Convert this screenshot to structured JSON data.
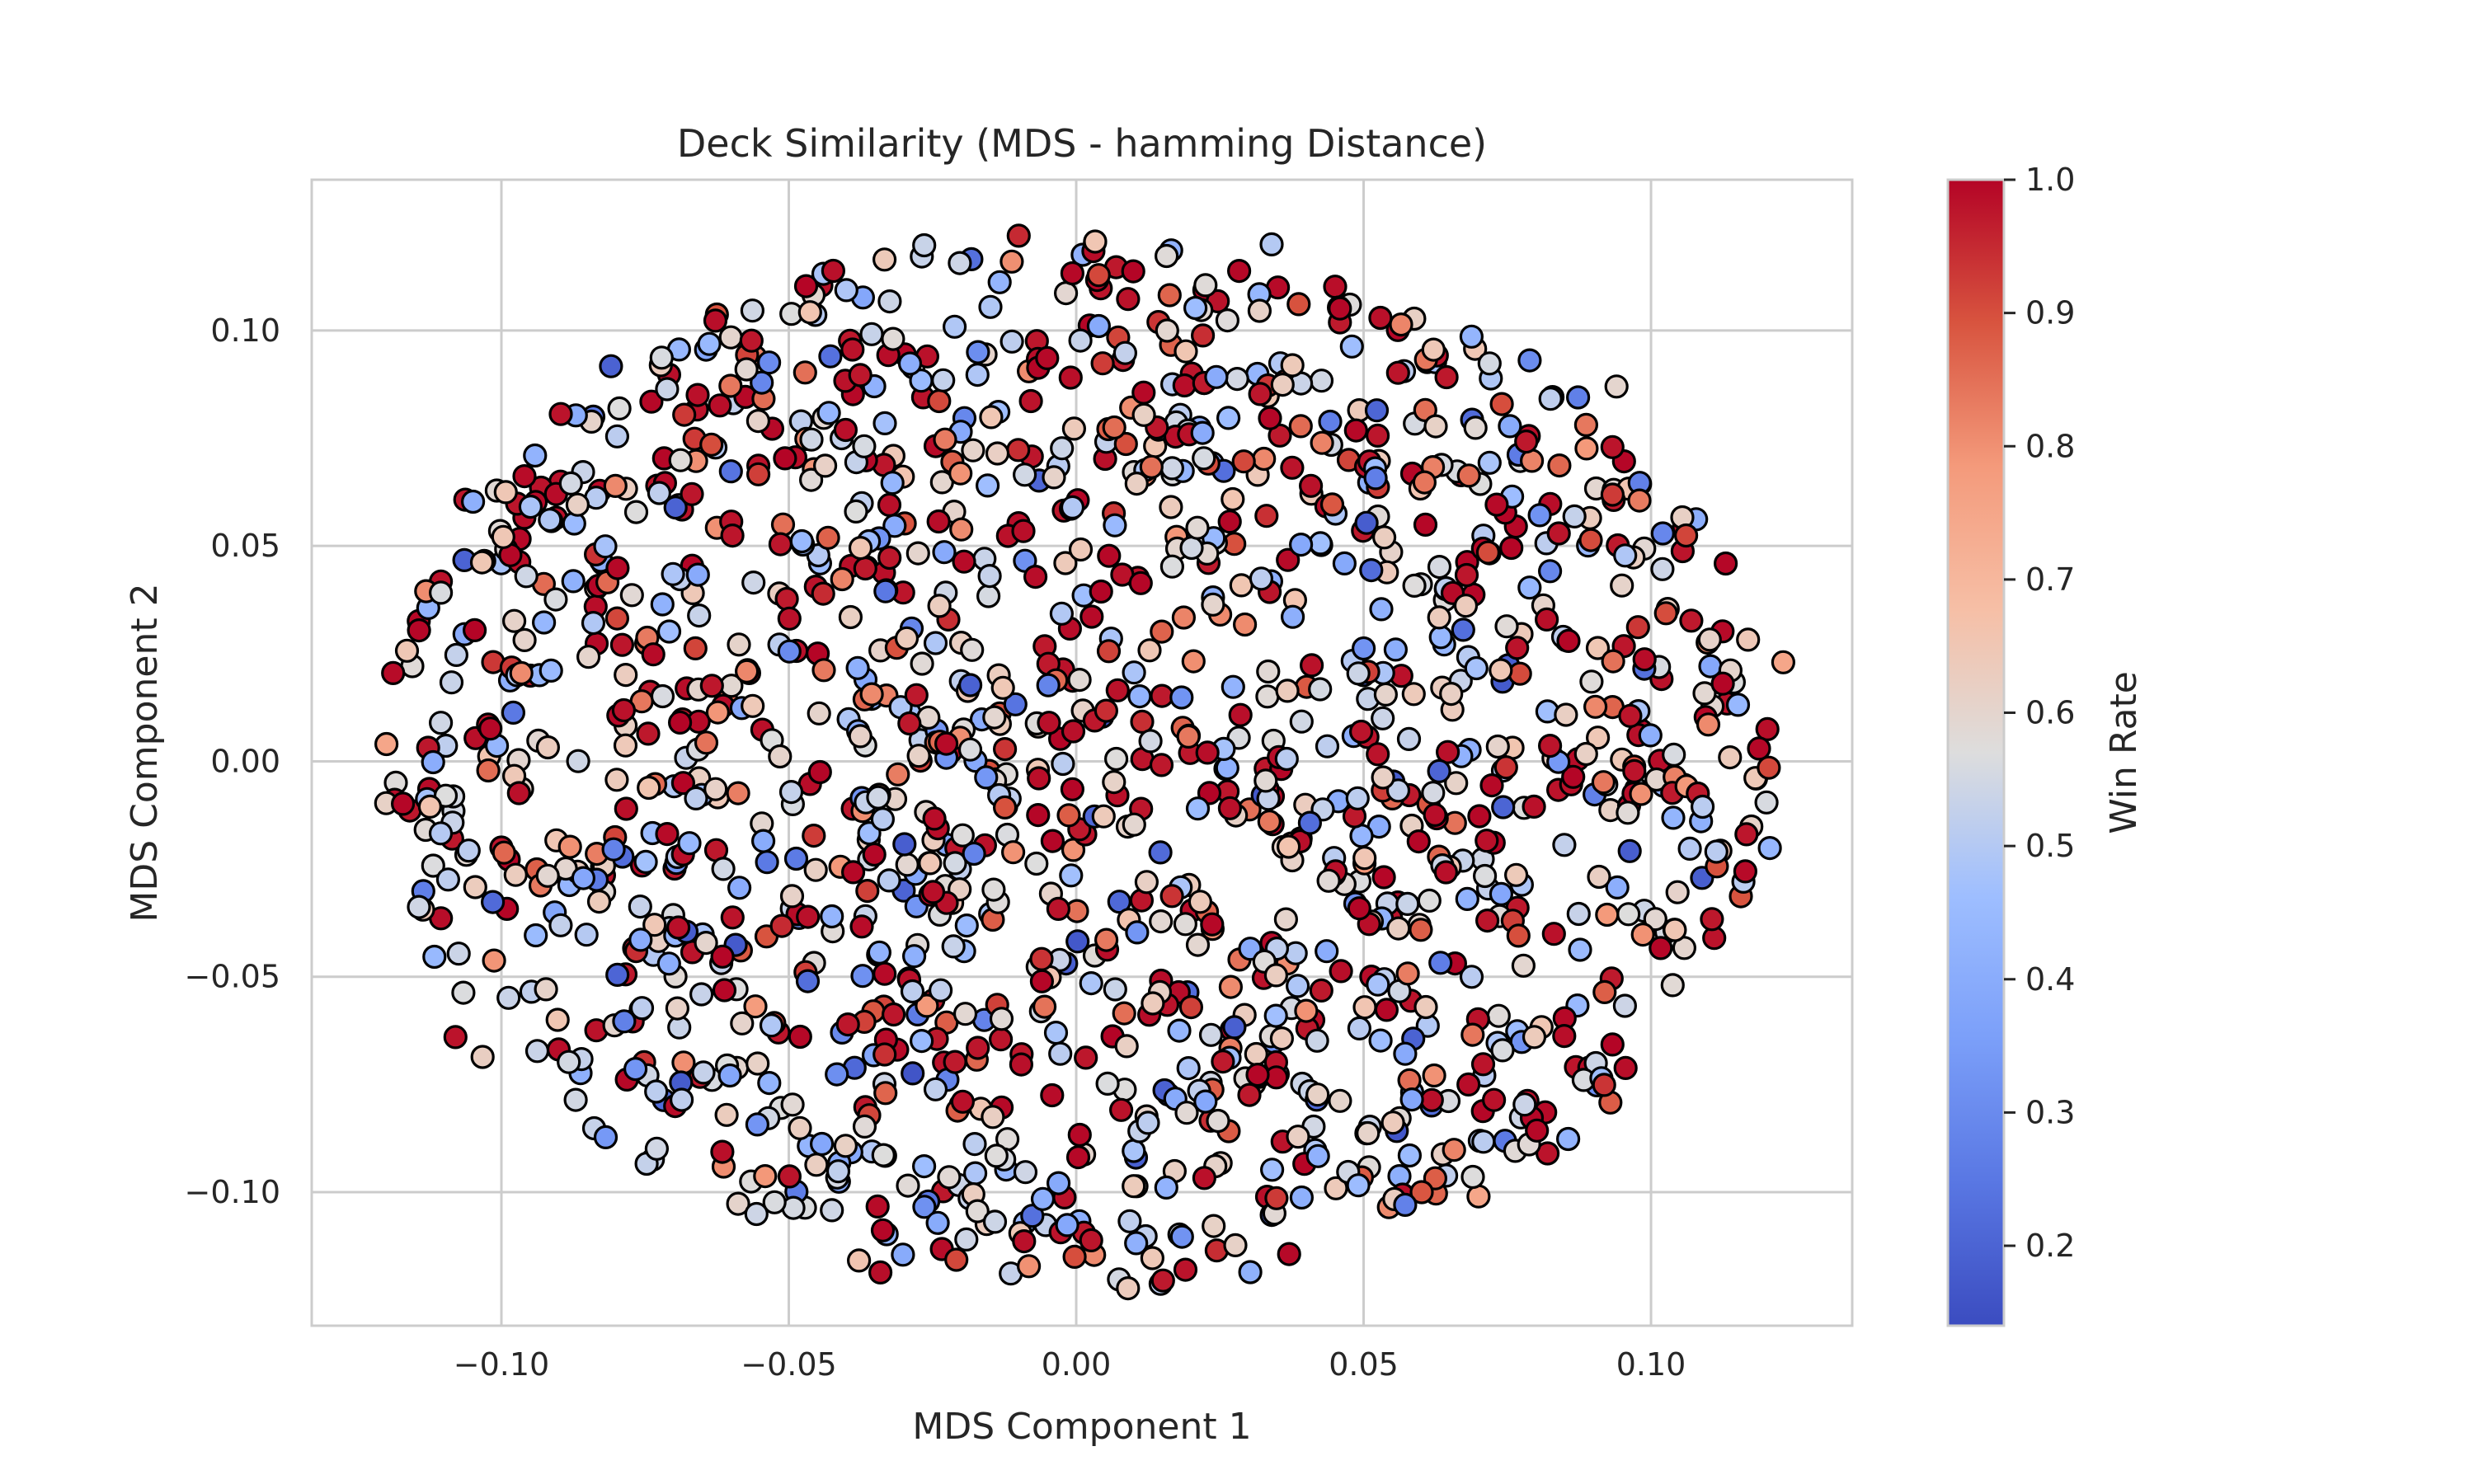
{
  "chart_data": {
    "type": "scatter",
    "title": "Deck Similarity (MDS - hamming Distance)",
    "xlabel": "MDS Component 1",
    "ylabel": "MDS Component 2",
    "xlim": [
      -0.133,
      0.135
    ],
    "ylim": [
      -0.131,
      0.135
    ],
    "x_ticks": [
      -0.1,
      -0.05,
      0.0,
      0.05,
      0.1
    ],
    "x_tick_labels": [
      "−0.10",
      "−0.05",
      "0.00",
      "0.05",
      "0.10"
    ],
    "y_ticks": [
      -0.1,
      -0.05,
      0.0,
      0.05,
      0.1
    ],
    "y_tick_labels": [
      "−0.10",
      "−0.05",
      "0.00",
      "0.05",
      "0.10"
    ],
    "grid": true,
    "colorbar": {
      "label": "Win Rate",
      "min": 0.14,
      "max": 1.0,
      "ticks": [
        0.2,
        0.3,
        0.4,
        0.5,
        0.6,
        0.7,
        0.8,
        0.9,
        1.0
      ],
      "tick_labels": [
        "0.2",
        "0.3",
        "0.4",
        "0.5",
        "0.6",
        "0.7",
        "0.8",
        "0.9",
        "1.0"
      ],
      "colormap": "coolwarm"
    },
    "points_summary": {
      "count": 1600,
      "shape": "roughly elliptical cloud",
      "x_range": [
        -0.12,
        0.123
      ],
      "y_range": [
        -0.12,
        0.123
      ],
      "win_rate_range": [
        0.14,
        1.0
      ]
    },
    "points_sample": [
      {
        "x": 0.019,
        "y": -0.118,
        "c": 0.98
      },
      {
        "x": -0.01,
        "y": 0.122,
        "c": 0.95
      },
      {
        "x": 0.034,
        "y": 0.12,
        "c": 0.5
      },
      {
        "x": -0.12,
        "y": 0.004,
        "c": 0.75
      },
      {
        "x": 0.123,
        "y": 0.023,
        "c": 0.75
      },
      {
        "x": -0.108,
        "y": -0.064,
        "c": 0.98
      },
      {
        "x": 0.111,
        "y": -0.041,
        "c": 0.98
      },
      {
        "x": -0.084,
        "y": 0.08,
        "c": 0.25
      },
      {
        "x": -0.048,
        "y": -0.103,
        "c": 0.5
      },
      {
        "x": 0.082,
        "y": -0.091,
        "c": 0.98
      },
      {
        "x": 0.07,
        "y": -0.101,
        "c": 0.75
      },
      {
        "x": 0.094,
        "y": 0.087,
        "c": 0.6
      },
      {
        "x": -0.1,
        "y": -0.02,
        "c": 0.98
      },
      {
        "x": 0.05,
        "y": 0.02,
        "c": 0.2
      },
      {
        "x": -0.03,
        "y": -0.03,
        "c": 0.2
      }
    ],
    "markers": {
      "edge_color": "#000000"
    }
  }
}
